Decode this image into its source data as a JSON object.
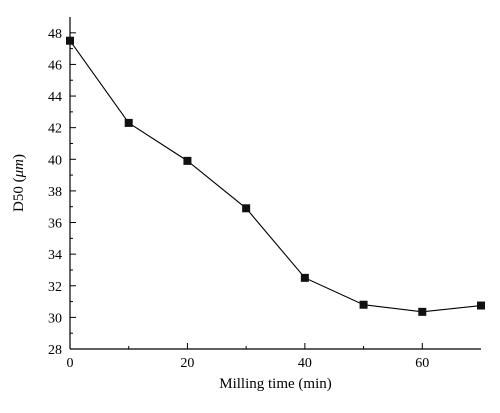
{
  "chart_data": {
    "type": "line",
    "xlabel": "Milling time (min)",
    "ylabel_prefix": "D50 (",
    "ylabel_unit": "μm",
    "ylabel_suffix": ")",
    "xlim": [
      0,
      70
    ],
    "ylim": [
      28,
      49
    ],
    "xticks": [
      0,
      20,
      40,
      60
    ],
    "yticks": [
      28,
      30,
      32,
      34,
      36,
      38,
      40,
      42,
      44,
      46,
      48
    ],
    "grid": false,
    "marker": "square",
    "series": [
      {
        "x": [
          0,
          10,
          20,
          30,
          40,
          50,
          60,
          70
        ],
        "y": [
          47.5,
          42.3,
          39.9,
          36.9,
          32.5,
          30.8,
          30.35,
          30.75
        ]
      }
    ]
  }
}
